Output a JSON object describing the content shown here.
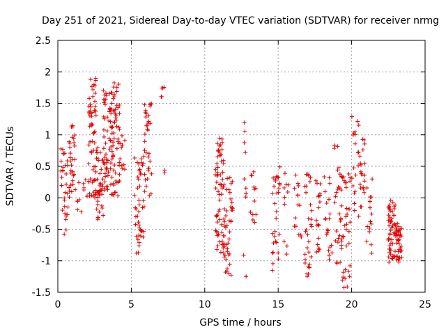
{
  "chart_data": {
    "type": "scatter",
    "title": "Day 251 of 2021, Sidereal Day-to-day VTEC variation (SDTVAR) for receiver nrmg",
    "xlabel": "GPS time / hours",
    "ylabel": "SDTVAR / TECUs",
    "xlim": [
      0,
      25
    ],
    "ylim": [
      -1.5,
      2.5
    ],
    "grid": true,
    "marker": "+",
    "marker_color": "#e00000",
    "xticks": [
      {
        "value": 0,
        "label": "0"
      },
      {
        "value": 5,
        "label": "5"
      },
      {
        "value": 10,
        "label": "10"
      },
      {
        "value": 15,
        "label": "15"
      },
      {
        "value": 20,
        "label": "20"
      },
      {
        "value": 25,
        "label": "25"
      }
    ],
    "yticks": [
      {
        "value": -1.5,
        "label": "-1.5"
      },
      {
        "value": -1,
        "label": "-1"
      },
      {
        "value": -0.5,
        "label": "-0.5"
      },
      {
        "value": 0,
        "label": "0"
      },
      {
        "value": 0.5,
        "label": "0.5"
      },
      {
        "value": 1,
        "label": "1"
      },
      {
        "value": 1.5,
        "label": "1.5"
      },
      {
        "value": 2,
        "label": "2"
      },
      {
        "value": 2.5,
        "label": "2.5"
      }
    ],
    "clusters": [
      {
        "x": [
          0.2,
          0.7
        ],
        "y": [
          -0.6,
          0.8
        ],
        "n": 30
      },
      {
        "x": [
          0.7,
          1.2
        ],
        "y": [
          0.0,
          1.15
        ],
        "n": 30
      },
      {
        "x": [
          1.3,
          2.0
        ],
        "y": [
          -0.3,
          0.3
        ],
        "n": 12
      },
      {
        "x": [
          2.1,
          2.6
        ],
        "y": [
          0.0,
          1.9
        ],
        "n": 60
      },
      {
        "x": [
          2.6,
          3.1
        ],
        "y": [
          -0.35,
          0.8
        ],
        "n": 40
      },
      {
        "x": [
          3.1,
          3.6
        ],
        "y": [
          0.1,
          1.75
        ],
        "n": 50
      },
      {
        "x": [
          3.6,
          4.2
        ],
        "y": [
          0.0,
          1.85
        ],
        "n": 70
      },
      {
        "x": [
          4.2,
          4.6
        ],
        "y": [
          0.4,
          1.0
        ],
        "n": 10
      },
      {
        "x": [
          5.2,
          5.9
        ],
        "y": [
          -0.9,
          0.75
        ],
        "n": 45
      },
      {
        "x": [
          5.9,
          6.4
        ],
        "y": [
          0.0,
          1.5
        ],
        "n": 35
      },
      {
        "x": [
          7.0,
          7.3
        ],
        "y": [
          1.6,
          1.8
        ],
        "n": 5
      },
      {
        "x": [
          7.0,
          7.3
        ],
        "y": [
          0.35,
          0.45
        ],
        "n": 2
      },
      {
        "x": [
          10.7,
          11.3
        ],
        "y": [
          -0.9,
          0.95
        ],
        "n": 65
      },
      {
        "x": [
          11.3,
          11.9
        ],
        "y": [
          -1.25,
          0.4
        ],
        "n": 45
      },
      {
        "x": [
          12.5,
          12.9
        ],
        "y": [
          -1.3,
          1.25
        ],
        "n": 10
      },
      {
        "x": [
          13.1,
          13.5
        ],
        "y": [
          -0.45,
          0.55
        ],
        "n": 12
      },
      {
        "x": [
          14.6,
          15.2
        ],
        "y": [
          -1.2,
          0.55
        ],
        "n": 30
      },
      {
        "x": [
          15.4,
          15.7
        ],
        "y": [
          -0.9,
          0.45
        ],
        "n": 10
      },
      {
        "x": [
          16.1,
          16.6
        ],
        "y": [
          -0.65,
          0.5
        ],
        "n": 14
      },
      {
        "x": [
          16.8,
          17.3
        ],
        "y": [
          -1.25,
          0.4
        ],
        "n": 30
      },
      {
        "x": [
          17.5,
          17.9
        ],
        "y": [
          -1.05,
          0.35
        ],
        "n": 20
      },
      {
        "x": [
          18.1,
          18.7
        ],
        "y": [
          -1.05,
          0.35
        ],
        "n": 20
      },
      {
        "x": [
          18.8,
          19.3
        ],
        "y": [
          -1.2,
          1.0
        ],
        "n": 25
      },
      {
        "x": [
          19.3,
          19.9
        ],
        "y": [
          -1.45,
          0.5
        ],
        "n": 40
      },
      {
        "x": [
          20.0,
          20.5
        ],
        "y": [
          -0.3,
          1.45
        ],
        "n": 20
      },
      {
        "x": [
          20.5,
          20.9
        ],
        "y": [
          -0.2,
          1.05
        ],
        "n": 20
      },
      {
        "x": [
          21.0,
          21.4
        ],
        "y": [
          -0.9,
          0.5
        ],
        "n": 15
      },
      {
        "x": [
          22.5,
          23.0
        ],
        "y": [
          -1.05,
          0.0
        ],
        "n": 60
      },
      {
        "x": [
          23.0,
          23.4
        ],
        "y": [
          -1.05,
          -0.4
        ],
        "n": 40
      }
    ]
  }
}
